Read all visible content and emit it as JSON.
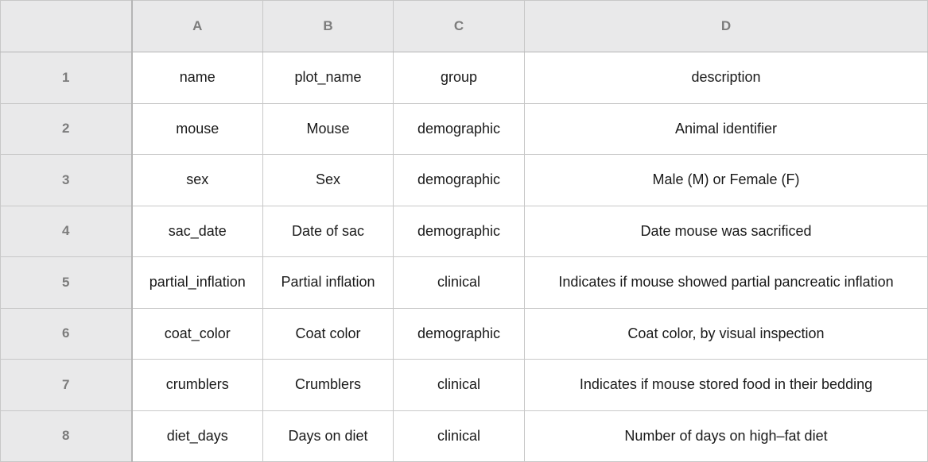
{
  "colors": {
    "header_bg": "#e9e9ea",
    "header_text": "#7c7c7c",
    "grid_line": "#c8c8c8",
    "cell_text": "#1a1a1a"
  },
  "column_headers": [
    "A",
    "B",
    "C",
    "D"
  ],
  "rows": [
    {
      "num": "1",
      "cells": [
        "name",
        "plot_name",
        "group",
        "description"
      ]
    },
    {
      "num": "2",
      "cells": [
        "mouse",
        "Mouse",
        "demographic",
        "Animal identifier"
      ]
    },
    {
      "num": "3",
      "cells": [
        "sex",
        "Sex",
        "demographic",
        "Male (M) or Female (F)"
      ]
    },
    {
      "num": "4",
      "cells": [
        "sac_date",
        "Date of sac",
        "demographic",
        "Date mouse was sacrificed"
      ]
    },
    {
      "num": "5",
      "cells": [
        "partial_inflation",
        "Partial inflation",
        "clinical",
        "Indicates if mouse showed partial pancreatic inflation"
      ]
    },
    {
      "num": "6",
      "cells": [
        "coat_color",
        "Coat color",
        "demographic",
        "Coat color, by visual inspection"
      ]
    },
    {
      "num": "7",
      "cells": [
        "crumblers",
        "Crumblers",
        "clinical",
        "Indicates if mouse stored food in their bedding"
      ]
    },
    {
      "num": "8",
      "cells": [
        "diet_days",
        "Days on diet",
        "clinical",
        "Number of days on high–fat diet"
      ]
    }
  ]
}
